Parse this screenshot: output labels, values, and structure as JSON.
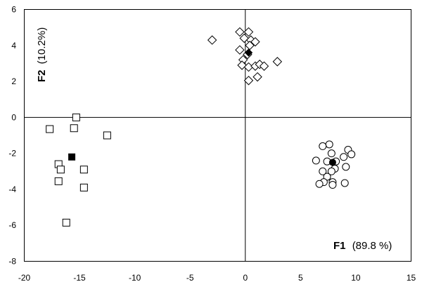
{
  "chart_data": {
    "type": "scatter",
    "title": "",
    "xlabel": {
      "name": "F1",
      "value": "(89.8 %)"
    },
    "ylabel": {
      "name": "F2",
      "value": "(10.2%)"
    },
    "xlim": [
      -20,
      15
    ],
    "ylim": [
      -8,
      6
    ],
    "x_ticks": [
      -20,
      -15,
      -10,
      -5,
      0,
      5,
      10,
      15
    ],
    "y_ticks": [
      -8,
      -6,
      -4,
      -2,
      0,
      2,
      4,
      6
    ],
    "grid": false,
    "axis_lines_at_zero": true,
    "series": [
      {
        "marker": "square",
        "points": [
          [
            -17.7,
            -0.65
          ],
          [
            -15.3,
            0.0
          ],
          [
            -15.5,
            -0.6
          ],
          [
            -12.5,
            -1.0
          ],
          [
            -16.9,
            -2.6
          ],
          [
            -16.7,
            -2.9
          ],
          [
            -14.6,
            -2.9
          ],
          [
            -16.9,
            -3.55
          ],
          [
            -14.6,
            -3.9
          ],
          [
            -16.2,
            -5.85
          ]
        ],
        "centroid": [
          -15.7,
          -2.2
        ]
      },
      {
        "marker": "diamond",
        "points": [
          [
            -3.0,
            4.3
          ],
          [
            -0.5,
            4.75
          ],
          [
            0.3,
            4.75
          ],
          [
            -0.1,
            4.4
          ],
          [
            0.5,
            4.3
          ],
          [
            0.9,
            4.2
          ],
          [
            0.4,
            4.0
          ],
          [
            -0.5,
            3.75
          ],
          [
            0.2,
            3.5
          ],
          [
            -0.2,
            3.2
          ],
          [
            -0.3,
            2.9
          ],
          [
            0.3,
            2.8
          ],
          [
            0.9,
            2.85
          ],
          [
            1.3,
            2.95
          ],
          [
            1.7,
            2.85
          ],
          [
            2.9,
            3.1
          ],
          [
            0.3,
            2.05
          ],
          [
            1.1,
            2.25
          ]
        ],
        "centroid": [
          0.3,
          3.6
        ]
      },
      {
        "marker": "circle",
        "points": [
          [
            7.6,
            -1.5
          ],
          [
            7.0,
            -1.6
          ],
          [
            9.3,
            -1.8
          ],
          [
            7.8,
            -2.0
          ],
          [
            9.6,
            -2.05
          ],
          [
            8.9,
            -2.2
          ],
          [
            6.4,
            -2.4
          ],
          [
            7.4,
            -2.45
          ],
          [
            8.2,
            -2.45
          ],
          [
            9.1,
            -2.75
          ],
          [
            8.1,
            -2.85
          ],
          [
            7.0,
            -3.0
          ],
          [
            7.8,
            -3.0
          ],
          [
            7.4,
            -3.3
          ],
          [
            7.1,
            -3.6
          ],
          [
            6.7,
            -3.7
          ],
          [
            7.9,
            -3.6
          ],
          [
            7.9,
            -3.75
          ],
          [
            9.0,
            -3.65
          ]
        ],
        "centroid": [
          7.9,
          -2.5
        ]
      }
    ]
  }
}
